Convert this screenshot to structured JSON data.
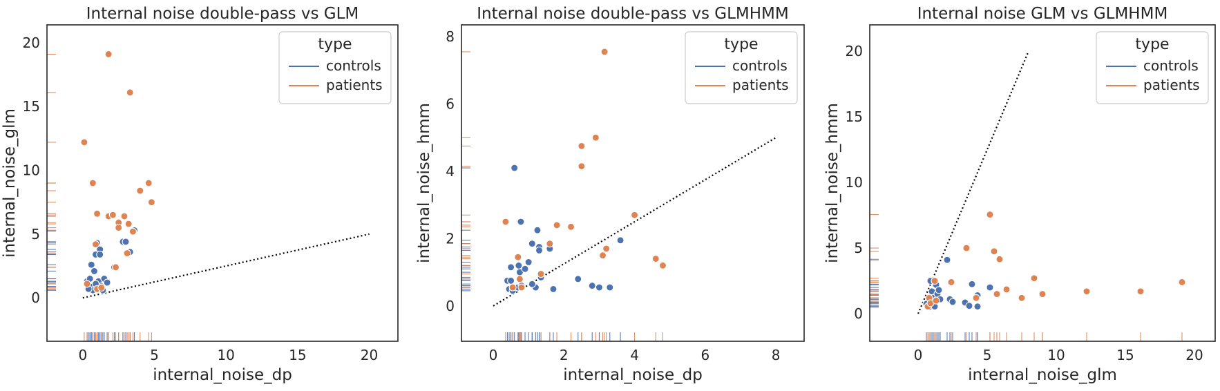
{
  "colors": {
    "controls": "#4c72b0",
    "patients": "#dd8452",
    "axes": "#262626",
    "identity": "#000000",
    "legend_border": "#cccccc"
  },
  "chart_data": [
    {
      "type": "scatter",
      "title": "Internal noise double-pass vs GLM",
      "xlabel": "internal_noise_dp",
      "ylabel": "internal_noise_glm",
      "xlim": [
        -2.5,
        22
      ],
      "ylim": [
        -3.4,
        21.4
      ],
      "xticks": [
        0,
        5,
        10,
        15,
        20
      ],
      "yticks": [
        0,
        5,
        10,
        15,
        20
      ],
      "identity_line": [
        [
          0,
          0
        ],
        [
          20,
          5
        ]
      ],
      "rug": true,
      "legend": {
        "title": "type",
        "position": "top-right",
        "entries": [
          "controls",
          "patients"
        ]
      },
      "series": [
        {
          "name": "controls",
          "color_key": "controls",
          "points": [
            [
              0.3,
              1.3
            ],
            [
              0.5,
              1.5
            ],
            [
              0.5,
              0.9
            ],
            [
              0.7,
              0.6
            ],
            [
              0.8,
              2.1
            ],
            [
              0.6,
              2.6
            ],
            [
              0.9,
              3.4
            ],
            [
              1.0,
              4.3
            ],
            [
              1.1,
              1.3
            ],
            [
              1.2,
              3.8
            ],
            [
              1.2,
              3.4
            ],
            [
              1.3,
              0.9
            ],
            [
              1.4,
              0.6
            ],
            [
              1.5,
              1.5
            ],
            [
              1.7,
              1.2
            ],
            [
              2.2,
              2.4
            ],
            [
              2.8,
              4.4
            ],
            [
              3.0,
              4.4
            ],
            [
              3.3,
              3.6
            ],
            [
              3.6,
              5.3
            ],
            [
              0.4,
              0.7
            ],
            [
              0.9,
              1.1
            ]
          ]
        },
        {
          "name": "patients",
          "color_key": "patients",
          "points": [
            [
              0.1,
              12.2
            ],
            [
              0.3,
              1.1
            ],
            [
              0.7,
              9.0
            ],
            [
              0.9,
              4.2
            ],
            [
              1.0,
              6.6
            ],
            [
              1.0,
              0.7
            ],
            [
              1.3,
              0.8
            ],
            [
              1.8,
              19.1
            ],
            [
              1.8,
              6.4
            ],
            [
              2.1,
              6.5
            ],
            [
              2.3,
              2.4
            ],
            [
              2.5,
              5.9
            ],
            [
              2.5,
              5.5
            ],
            [
              2.9,
              6.4
            ],
            [
              3.1,
              3.5
            ],
            [
              3.2,
              5.8
            ],
            [
              3.3,
              16.1
            ],
            [
              3.5,
              5.2
            ],
            [
              4.0,
              8.4
            ],
            [
              4.6,
              9.0
            ],
            [
              4.8,
              7.5
            ]
          ]
        }
      ]
    },
    {
      "type": "scatter",
      "title": "Internal noise double-pass vs GLMHMM",
      "xlabel": "internal_noise_dp",
      "ylabel": "internal_noise_hmm",
      "xlim": [
        -0.9,
        8.8
      ],
      "ylim": [
        -1.05,
        8.35
      ],
      "xticks": [
        0,
        2,
        4,
        6,
        8
      ],
      "yticks": [
        0,
        2,
        4,
        6,
        8
      ],
      "identity_line": [
        [
          0,
          0
        ],
        [
          8,
          5
        ]
      ],
      "rug": true,
      "legend": {
        "title": "type",
        "position": "top-right",
        "entries": [
          "controls",
          "patients"
        ]
      },
      "series": [
        {
          "name": "controls",
          "color_key": "controls",
          "points": [
            [
              0.4,
              0.75
            ],
            [
              0.45,
              0.5
            ],
            [
              0.5,
              1.15
            ],
            [
              0.55,
              0.45
            ],
            [
              0.6,
              4.1
            ],
            [
              0.7,
              0.55
            ],
            [
              0.72,
              1.2
            ],
            [
              0.75,
              1.0
            ],
            [
              0.78,
              2.5
            ],
            [
              0.8,
              0.6
            ],
            [
              0.9,
              1.1
            ],
            [
              1.0,
              1.3
            ],
            [
              1.1,
              1.85
            ],
            [
              1.2,
              0.55
            ],
            [
              1.25,
              2.25
            ],
            [
              1.3,
              1.75
            ],
            [
              1.35,
              0.85
            ],
            [
              1.3,
              1.65
            ],
            [
              1.6,
              1.7
            ],
            [
              1.7,
              0.5
            ],
            [
              2.4,
              0.8
            ],
            [
              2.8,
              0.6
            ],
            [
              3.0,
              0.55
            ],
            [
              3.3,
              0.55
            ],
            [
              3.6,
              1.95
            ],
            [
              0.5,
              0.75
            ],
            [
              1.1,
              0.65
            ]
          ]
        },
        {
          "name": "patients",
          "color_key": "patients",
          "points": [
            [
              0.35,
              2.5
            ],
            [
              0.55,
              0.55
            ],
            [
              0.7,
              1.45
            ],
            [
              0.75,
              0.8
            ],
            [
              0.8,
              0.55
            ],
            [
              1.35,
              0.95
            ],
            [
              1.6,
              1.85
            ],
            [
              1.8,
              2.4
            ],
            [
              2.2,
              2.35
            ],
            [
              2.5,
              4.75
            ],
            [
              2.5,
              4.15
            ],
            [
              2.9,
              5.0
            ],
            [
              3.1,
              1.5
            ],
            [
              3.15,
              7.55
            ],
            [
              3.2,
              1.7
            ],
            [
              4.0,
              2.7
            ],
            [
              4.6,
              1.4
            ],
            [
              4.8,
              1.2
            ]
          ]
        }
      ]
    },
    {
      "type": "scatter",
      "title": "Internal noise GLM vs GLMHMM",
      "xlabel": "internal_noise_glm",
      "ylabel": "internal_noise_hmm",
      "xlim": [
        -3.5,
        21.5
      ],
      "ylim": [
        -2.1,
        22.0
      ],
      "xticks": [
        0,
        5,
        10,
        15,
        20
      ],
      "yticks": [
        0,
        5,
        10,
        15,
        20
      ],
      "identity_line": [
        [
          0,
          0
        ],
        [
          8,
          20
        ]
      ],
      "rug": true,
      "legend": {
        "title": "type",
        "position": "top-right",
        "entries": [
          "controls",
          "patients"
        ]
      },
      "series": [
        {
          "name": "controls",
          "color_key": "controls",
          "points": [
            [
              0.6,
              0.75
            ],
            [
              0.8,
              0.5
            ],
            [
              0.9,
              2.5
            ],
            [
              1.0,
              1.7
            ],
            [
              1.1,
              1.2
            ],
            [
              1.2,
              0.55
            ],
            [
              1.3,
              2.2
            ],
            [
              1.4,
              1.5
            ],
            [
              1.5,
              1.8
            ],
            [
              1.6,
              1.1
            ],
            [
              2.1,
              4.1
            ],
            [
              2.3,
              1.1
            ],
            [
              2.5,
              0.9
            ],
            [
              3.4,
              0.85
            ],
            [
              3.7,
              0.6
            ],
            [
              3.9,
              2.25
            ],
            [
              4.3,
              0.55
            ],
            [
              4.3,
              1.4
            ],
            [
              5.2,
              2.0
            ]
          ]
        },
        {
          "name": "patients",
          "color_key": "patients",
          "points": [
            [
              0.7,
              0.55
            ],
            [
              0.8,
              1.2
            ],
            [
              0.9,
              0.8
            ],
            [
              1.2,
              2.5
            ],
            [
              1.3,
              1.0
            ],
            [
              2.4,
              2.4
            ],
            [
              3.5,
              5.0
            ],
            [
              4.2,
              1.2
            ],
            [
              5.2,
              7.55
            ],
            [
              5.5,
              4.75
            ],
            [
              5.7,
              1.5
            ],
            [
              5.9,
              4.15
            ],
            [
              6.4,
              1.85
            ],
            [
              7.5,
              1.2
            ],
            [
              8.4,
              2.7
            ],
            [
              9.0,
              1.45
            ],
            [
              9.0,
              1.5
            ],
            [
              12.2,
              1.7
            ],
            [
              16.1,
              1.7
            ],
            [
              19.1,
              2.4
            ]
          ]
        }
      ]
    }
  ]
}
